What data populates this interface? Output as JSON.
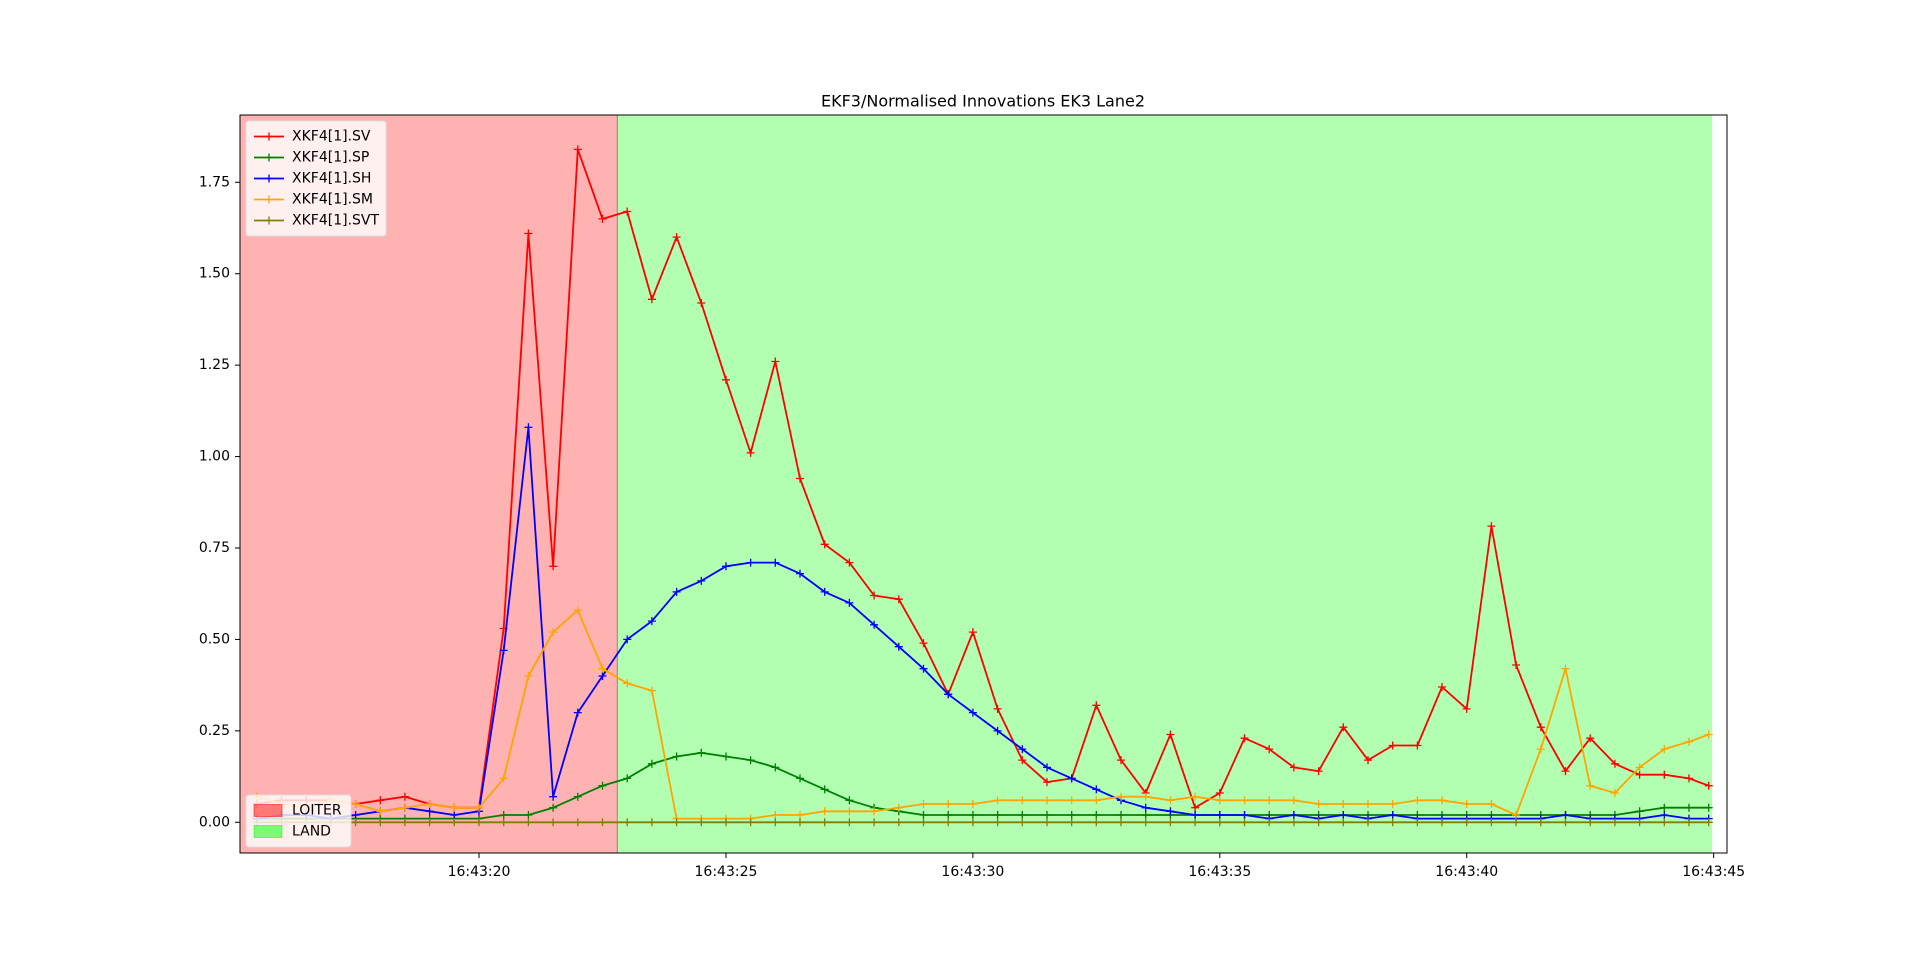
{
  "chart_data": {
    "type": "line",
    "title": "EKF3/Normalised Innovations EK3 Lane2",
    "x": [
      15.5,
      16,
      16.5,
      17,
      17.5,
      18,
      18.5,
      19,
      19.5,
      20,
      20.5,
      21,
      21.5,
      22,
      22.5,
      23,
      23.5,
      24,
      24.5,
      25,
      25.5,
      26,
      26.5,
      27,
      27.5,
      28,
      28.5,
      29,
      29.5,
      30,
      30.5,
      31,
      31.5,
      32,
      32.5,
      33,
      33.5,
      34,
      34.5,
      35,
      35.5,
      36,
      36.5,
      37,
      37.5,
      38,
      38.5,
      39,
      39.5,
      40,
      40.5,
      41,
      41.5,
      42,
      42.5,
      43,
      43.5,
      44,
      44.5,
      44.9
    ],
    "series": [
      {
        "name": "XKF4[1].SV",
        "color": "#ff0000",
        "values": [
          0.05,
          0.06,
          0.06,
          0.06,
          0.05,
          0.06,
          0.07,
          0.05,
          0.04,
          0.04,
          0.53,
          1.61,
          0.7,
          1.84,
          1.65,
          1.67,
          1.43,
          1.6,
          1.42,
          1.21,
          1.01,
          1.26,
          0.94,
          0.76,
          0.71,
          0.62,
          0.61,
          0.49,
          0.35,
          0.52,
          0.31,
          0.17,
          0.11,
          0.12,
          0.32,
          0.17,
          0.08,
          0.24,
          0.04,
          0.08,
          0.23,
          0.2,
          0.15,
          0.14,
          0.26,
          0.17,
          0.21,
          0.21,
          0.37,
          0.31,
          0.81,
          0.43,
          0.26,
          0.14,
          0.23,
          0.16,
          0.13,
          0.13,
          0.12,
          0.1
        ]
      },
      {
        "name": "XKF4[1].SP",
        "color": "#008000",
        "values": [
          0.01,
          0.01,
          0.01,
          0.01,
          0.01,
          0.01,
          0.01,
          0.01,
          0.01,
          0.01,
          0.02,
          0.02,
          0.04,
          0.07,
          0.1,
          0.12,
          0.16,
          0.18,
          0.19,
          0.18,
          0.17,
          0.15,
          0.12,
          0.09,
          0.06,
          0.04,
          0.03,
          0.02,
          0.02,
          0.02,
          0.02,
          0.02,
          0.02,
          0.02,
          0.02,
          0.02,
          0.02,
          0.02,
          0.02,
          0.02,
          0.02,
          0.02,
          0.02,
          0.02,
          0.02,
          0.02,
          0.02,
          0.02,
          0.02,
          0.02,
          0.02,
          0.02,
          0.02,
          0.02,
          0.02,
          0.02,
          0.03,
          0.04,
          0.04,
          0.04
        ]
      },
      {
        "name": "XKF4[1].SH",
        "color": "#0000ff",
        "values": [
          0.01,
          0.02,
          0.02,
          0.01,
          0.02,
          0.03,
          0.04,
          0.03,
          0.02,
          0.03,
          0.47,
          1.08,
          0.07,
          0.3,
          0.4,
          0.5,
          0.55,
          0.63,
          0.66,
          0.7,
          0.71,
          0.71,
          0.68,
          0.63,
          0.6,
          0.54,
          0.48,
          0.42,
          0.35,
          0.3,
          0.25,
          0.2,
          0.15,
          0.12,
          0.09,
          0.06,
          0.04,
          0.03,
          0.02,
          0.02,
          0.02,
          0.01,
          0.02,
          0.01,
          0.02,
          0.01,
          0.02,
          0.01,
          0.01,
          0.01,
          0.01,
          0.01,
          0.01,
          0.02,
          0.01,
          0.01,
          0.01,
          0.02,
          0.01,
          0.01
        ]
      },
      {
        "name": "XKF4[1].SM",
        "color": "#ffa500",
        "values": [
          0.07,
          0.05,
          0.04,
          0.06,
          0.05,
          0.03,
          0.04,
          0.05,
          0.04,
          0.04,
          0.12,
          0.4,
          0.52,
          0.58,
          0.42,
          0.38,
          0.36,
          0.01,
          0.01,
          0.01,
          0.01,
          0.02,
          0.02,
          0.03,
          0.03,
          0.03,
          0.04,
          0.05,
          0.05,
          0.05,
          0.06,
          0.06,
          0.06,
          0.06,
          0.06,
          0.07,
          0.07,
          0.06,
          0.07,
          0.06,
          0.06,
          0.06,
          0.06,
          0.05,
          0.05,
          0.05,
          0.05,
          0.06,
          0.06,
          0.05,
          0.05,
          0.02,
          0.2,
          0.42,
          0.1,
          0.08,
          0.15,
          0.2,
          0.22,
          0.24
        ]
      },
      {
        "name": "XKF4[1].SVT",
        "color": "#808000",
        "values": [
          0,
          0,
          0,
          0,
          0,
          0,
          0,
          0,
          0,
          0,
          0,
          0,
          0,
          0,
          0,
          0,
          0,
          0,
          0,
          0,
          0,
          0,
          0,
          0,
          0,
          0,
          0,
          0,
          0,
          0,
          0,
          0,
          0,
          0,
          0,
          0,
          0,
          0,
          0,
          0,
          0,
          0,
          0,
          0,
          0,
          0,
          0,
          0,
          0,
          0,
          0,
          0,
          0,
          0,
          0,
          0,
          0,
          0,
          0,
          0
        ]
      }
    ],
    "spans": [
      {
        "name": "LOITER",
        "color": "#ff0000",
        "x": [
          15.16,
          22.8
        ]
      },
      {
        "name": "LAND",
        "color": "#00ff00",
        "x": [
          22.8,
          44.97
        ]
      }
    ],
    "xlim": [
      15.16,
      45.27
    ],
    "xticks": [
      {
        "value": 20,
        "label": "16:43:20"
      },
      {
        "value": 25,
        "label": "16:43:25"
      },
      {
        "value": 30,
        "label": "16:43:30"
      },
      {
        "value": 35,
        "label": "16:43:35"
      },
      {
        "value": 40,
        "label": "16:43:40"
      },
      {
        "value": 45,
        "label": "16:43:45"
      }
    ],
    "ylim": [
      -0.084,
      1.934
    ],
    "yticks": [
      {
        "value": 0,
        "label": "0.00"
      },
      {
        "value": 0.25,
        "label": "0.25"
      },
      {
        "value": 0.5,
        "label": "0.50"
      },
      {
        "value": 0.75,
        "label": "0.75"
      },
      {
        "value": 1,
        "label": "1.00"
      },
      {
        "value": 1.25,
        "label": "1.25"
      },
      {
        "value": 1.5,
        "label": "1.50"
      },
      {
        "value": 1.75,
        "label": "1.75"
      }
    ],
    "legend": "upper left",
    "span_legend": "lower left"
  }
}
